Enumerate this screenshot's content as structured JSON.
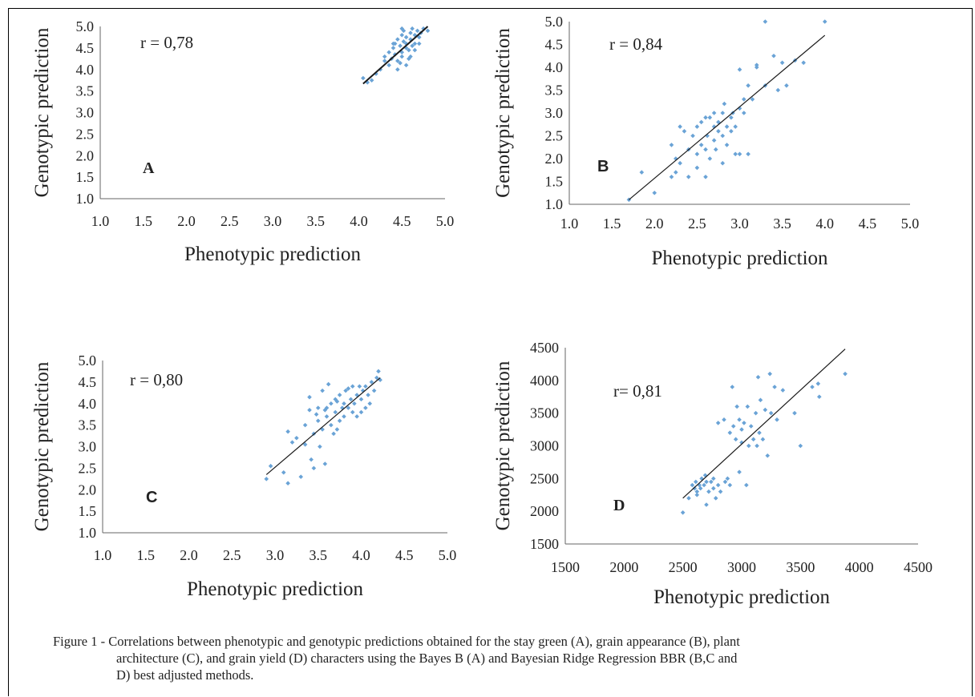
{
  "caption": [
    "Figure 1 - Correlations between phenotypic and genotypic predictions obtained for the stay green (A), grain appearance (B), plant",
    "architecture (C), and grain yield (D) characters using the Bayes B (A) and Bayesian Ridge Regression BBR (B,C and",
    "D) best adjusted methods."
  ],
  "colors": {
    "points": "#6aa3d6",
    "trend": "#1a1a1a",
    "axis": "#666666",
    "text": "#222222"
  },
  "chart_data": [
    {
      "panel": "A",
      "type": "scatter",
      "xlabel": "Phenotypic prediction",
      "ylabel": "Genotypic prediction",
      "annotation": "r = 0,78",
      "xlim": [
        1.0,
        5.0
      ],
      "ylim": [
        1.0,
        5.0
      ],
      "xticks": [
        "1.0",
        "1.5",
        "2.0",
        "2.5",
        "3.0",
        "3.5",
        "4.0",
        "4.5",
        "5.0"
      ],
      "yticks": [
        "1.0",
        "1.5",
        "2.0",
        "2.5",
        "3.0",
        "3.5",
        "4.0",
        "4.5",
        "5.0"
      ],
      "grid": false,
      "trendline": [
        [
          4.05,
          3.67
        ],
        [
          4.8,
          5.0
        ]
      ],
      "points": [
        [
          4.05,
          3.8
        ],
        [
          4.1,
          3.7
        ],
        [
          4.15,
          3.75
        ],
        [
          4.2,
          3.9
        ],
        [
          4.25,
          4.0
        ],
        [
          4.3,
          4.2
        ],
        [
          4.3,
          4.3
        ],
        [
          4.35,
          4.1
        ],
        [
          4.35,
          4.4
        ],
        [
          4.38,
          4.25
        ],
        [
          4.4,
          4.5
        ],
        [
          4.4,
          4.6
        ],
        [
          4.42,
          4.35
        ],
        [
          4.45,
          4.7
        ],
        [
          4.45,
          4.2
        ],
        [
          4.45,
          4.0
        ],
        [
          4.48,
          4.55
        ],
        [
          4.5,
          4.8
        ],
        [
          4.5,
          4.4
        ],
        [
          4.5,
          4.3
        ],
        [
          4.52,
          4.65
        ],
        [
          4.52,
          4.9
        ],
        [
          4.55,
          4.5
        ],
        [
          4.55,
          4.1
        ],
        [
          4.55,
          4.75
        ],
        [
          4.55,
          4.6
        ],
        [
          4.58,
          4.45
        ],
        [
          4.6,
          4.85
        ],
        [
          4.6,
          4.7
        ],
        [
          4.6,
          4.3
        ],
        [
          4.62,
          4.95
        ],
        [
          4.62,
          4.55
        ],
        [
          4.65,
          4.8
        ],
        [
          4.65,
          4.6
        ],
        [
          4.68,
          4.9
        ],
        [
          4.7,
          4.75
        ],
        [
          4.72,
          4.85
        ],
        [
          4.75,
          4.95
        ],
        [
          4.58,
          4.25
        ],
        [
          4.48,
          4.15
        ],
        [
          4.42,
          4.6
        ],
        [
          4.65,
          4.45
        ],
        [
          4.7,
          4.6
        ],
        [
          4.5,
          4.95
        ],
        [
          4.8,
          4.9
        ]
      ]
    },
    {
      "panel": "B",
      "type": "scatter",
      "xlabel": "Phenotypic prediction",
      "ylabel": "Genotypic prediction",
      "annotation": "r = 0,84",
      "xlim": [
        1.0,
        5.0
      ],
      "ylim": [
        1.0,
        5.0
      ],
      "xticks": [
        "1.0",
        "1.5",
        "2.0",
        "2.5",
        "3.0",
        "3.5",
        "4.0",
        "4.5",
        "5.0"
      ],
      "yticks": [
        "1.0",
        "1.5",
        "2.0",
        "2.5",
        "3.0",
        "3.5",
        "4.0",
        "4.5",
        "5.0"
      ],
      "grid": false,
      "trendline": [
        [
          1.7,
          1.1
        ],
        [
          4.0,
          4.7
        ]
      ],
      "points": [
        [
          1.7,
          1.1
        ],
        [
          1.85,
          1.7
        ],
        [
          2.0,
          1.25
        ],
        [
          2.2,
          2.3
        ],
        [
          2.2,
          1.6
        ],
        [
          2.25,
          2.0
        ],
        [
          2.25,
          1.7
        ],
        [
          2.3,
          2.7
        ],
        [
          2.3,
          1.9
        ],
        [
          2.35,
          2.6
        ],
        [
          2.4,
          1.6
        ],
        [
          2.4,
          2.2
        ],
        [
          2.45,
          2.5
        ],
        [
          2.5,
          2.1
        ],
        [
          2.5,
          2.7
        ],
        [
          2.5,
          1.8
        ],
        [
          2.55,
          2.3
        ],
        [
          2.55,
          2.8
        ],
        [
          2.6,
          2.9
        ],
        [
          2.6,
          2.2
        ],
        [
          2.6,
          1.6
        ],
        [
          2.62,
          2.5
        ],
        [
          2.65,
          2.0
        ],
        [
          2.65,
          2.9
        ],
        [
          2.7,
          2.7
        ],
        [
          2.7,
          2.4
        ],
        [
          2.7,
          3.0
        ],
        [
          2.72,
          2.2
        ],
        [
          2.75,
          2.6
        ],
        [
          2.75,
          2.8
        ],
        [
          2.8,
          3.0
        ],
        [
          2.8,
          2.5
        ],
        [
          2.8,
          1.9
        ],
        [
          2.82,
          3.2
        ],
        [
          2.85,
          2.7
        ],
        [
          2.85,
          2.3
        ],
        [
          2.9,
          2.9
        ],
        [
          2.9,
          2.6
        ],
        [
          2.92,
          3.0
        ],
        [
          2.95,
          2.1
        ],
        [
          2.95,
          2.7
        ],
        [
          3.0,
          3.1
        ],
        [
          3.0,
          2.1
        ],
        [
          3.05,
          3.3
        ],
        [
          3.05,
          3.0
        ],
        [
          3.1,
          2.1
        ],
        [
          3.1,
          3.6
        ],
        [
          3.15,
          3.3
        ],
        [
          3.2,
          4.0
        ],
        [
          3.2,
          4.05
        ],
        [
          3.3,
          5.0
        ],
        [
          3.3,
          3.6
        ],
        [
          3.4,
          4.25
        ],
        [
          3.45,
          3.5
        ],
        [
          3.5,
          4.1
        ],
        [
          3.55,
          3.6
        ],
        [
          3.65,
          4.15
        ],
        [
          3.75,
          4.1
        ],
        [
          4.0,
          5.0
        ],
        [
          3.0,
          3.95
        ]
      ]
    },
    {
      "panel": "C",
      "type": "scatter",
      "xlabel": "Phenotypic prediction",
      "ylabel": "Genotypic prediction",
      "annotation": "r = 0,80",
      "xlim": [
        1.0,
        5.0
      ],
      "ylim": [
        1.0,
        5.0
      ],
      "xticks": [
        "1.0",
        "1.5",
        "2.0",
        "2.5",
        "3.0",
        "3.5",
        "4.0",
        "4.5",
        "5.0"
      ],
      "yticks": [
        "1.0",
        "1.5",
        "2.0",
        "2.5",
        "3.0",
        "3.5",
        "4.0",
        "4.5",
        "5.0"
      ],
      "grid": false,
      "trendline": [
        [
          2.9,
          2.35
        ],
        [
          4.22,
          4.6
        ]
      ],
      "points": [
        [
          2.9,
          2.25
        ],
        [
          2.95,
          2.55
        ],
        [
          3.1,
          2.4
        ],
        [
          3.15,
          2.15
        ],
        [
          3.15,
          3.35
        ],
        [
          3.2,
          3.1
        ],
        [
          3.25,
          3.2
        ],
        [
          3.3,
          2.3
        ],
        [
          3.35,
          3.5
        ],
        [
          3.35,
          3.05
        ],
        [
          3.4,
          3.85
        ],
        [
          3.4,
          4.15
        ],
        [
          3.42,
          2.7
        ],
        [
          3.45,
          3.3
        ],
        [
          3.45,
          2.5
        ],
        [
          3.5,
          3.6
        ],
        [
          3.5,
          3.9
        ],
        [
          3.52,
          3.0
        ],
        [
          3.55,
          3.4
        ],
        [
          3.55,
          4.3
        ],
        [
          3.58,
          2.6
        ],
        [
          3.6,
          3.7
        ],
        [
          3.6,
          3.9
        ],
        [
          3.62,
          4.45
        ],
        [
          3.65,
          3.5
        ],
        [
          3.65,
          4.0
        ],
        [
          3.68,
          3.3
        ],
        [
          3.7,
          3.8
        ],
        [
          3.7,
          4.1
        ],
        [
          3.72,
          3.4
        ],
        [
          3.75,
          4.2
        ],
        [
          3.75,
          3.6
        ],
        [
          3.78,
          3.9
        ],
        [
          3.8,
          4.0
        ],
        [
          3.8,
          3.7
        ],
        [
          3.82,
          4.3
        ],
        [
          3.85,
          3.9
        ],
        [
          3.88,
          4.1
        ],
        [
          3.9,
          3.8
        ],
        [
          3.9,
          4.4
        ],
        [
          3.92,
          4.0
        ],
        [
          3.95,
          3.7
        ],
        [
          3.95,
          4.2
        ],
        [
          3.98,
          4.4
        ],
        [
          4.0,
          3.8
        ],
        [
          4.0,
          4.1
        ],
        [
          4.02,
          4.3
        ],
        [
          4.05,
          3.9
        ],
        [
          4.05,
          4.4
        ],
        [
          4.08,
          4.2
        ],
        [
          4.1,
          4.0
        ],
        [
          4.12,
          4.5
        ],
        [
          4.15,
          4.3
        ],
        [
          4.18,
          4.6
        ],
        [
          4.2,
          4.75
        ],
        [
          4.22,
          4.55
        ],
        [
          3.72,
          4.05
        ],
        [
          3.58,
          3.85
        ],
        [
          3.48,
          3.75
        ],
        [
          3.85,
          4.35
        ]
      ]
    },
    {
      "panel": "D",
      "type": "scatter",
      "xlabel": "Phenotypic prediction",
      "ylabel": "Genotypic prediction",
      "annotation": "r= 0,81",
      "xlim": [
        1500,
        4500
      ],
      "ylim": [
        1500,
        4500
      ],
      "xticks": [
        "1500",
        "2000",
        "2500",
        "3000",
        "3500",
        "4000",
        "4500"
      ],
      "yticks": [
        "1500",
        "2000",
        "2500",
        "3000",
        "3500",
        "4000",
        "4500"
      ],
      "grid": false,
      "trendline": [
        [
          2500,
          2200
        ],
        [
          3880,
          4480
        ]
      ],
      "points": [
        [
          2500,
          1980
        ],
        [
          2550,
          2200
        ],
        [
          2580,
          2400
        ],
        [
          2600,
          2350
        ],
        [
          2610,
          2450
        ],
        [
          2620,
          2300
        ],
        [
          2640,
          2400
        ],
        [
          2650,
          2350
        ],
        [
          2660,
          2500
        ],
        [
          2680,
          2400
        ],
        [
          2700,
          2100
        ],
        [
          2700,
          2450
        ],
        [
          2720,
          2300
        ],
        [
          2740,
          2450
        ],
        [
          2760,
          2350
        ],
        [
          2780,
          2200
        ],
        [
          2800,
          2400
        ],
        [
          2800,
          3350
        ],
        [
          2820,
          2300
        ],
        [
          2850,
          3400
        ],
        [
          2880,
          2500
        ],
        [
          2900,
          2400
        ],
        [
          2900,
          3200
        ],
        [
          2920,
          3900
        ],
        [
          2930,
          3300
        ],
        [
          2950,
          3100
        ],
        [
          2960,
          3600
        ],
        [
          2980,
          3400
        ],
        [
          3000,
          3250
        ],
        [
          3000,
          3050
        ],
        [
          3020,
          3350
        ],
        [
          3040,
          2400
        ],
        [
          3050,
          3600
        ],
        [
          3060,
          3000
        ],
        [
          3080,
          3300
        ],
        [
          3100,
          3100
        ],
        [
          3120,
          3500
        ],
        [
          3140,
          4050
        ],
        [
          3150,
          3200
        ],
        [
          3160,
          3700
        ],
        [
          3180,
          3100
        ],
        [
          3200,
          3550
        ],
        [
          3220,
          2850
        ],
        [
          3240,
          4100
        ],
        [
          3250,
          3500
        ],
        [
          3280,
          3900
        ],
        [
          3300,
          3400
        ],
        [
          3350,
          3850
        ],
        [
          3450,
          3500
        ],
        [
          3500,
          3000
        ],
        [
          3600,
          3900
        ],
        [
          3650,
          3950
        ],
        [
          3660,
          3750
        ],
        [
          3880,
          4100
        ],
        [
          2620,
          2250
        ],
        [
          2690,
          2550
        ],
        [
          2760,
          2500
        ],
        [
          2980,
          2600
        ],
        [
          3130,
          3000
        ],
        [
          2860,
          2450
        ]
      ]
    }
  ]
}
